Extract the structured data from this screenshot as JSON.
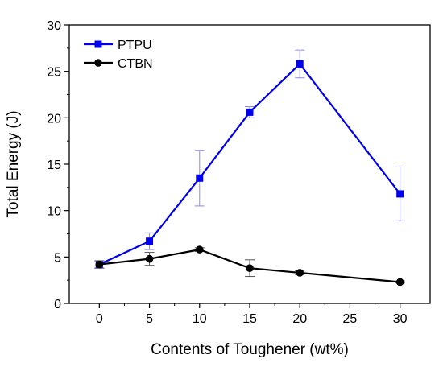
{
  "chart_data": {
    "type": "line",
    "title": "",
    "xlabel": "Contents of Toughener (wt%)",
    "ylabel": "Total Energy (J)",
    "xlim": [
      -3,
      33
    ],
    "ylim": [
      0,
      30
    ],
    "xticks": [
      0,
      5,
      10,
      15,
      20,
      25,
      30
    ],
    "yticks": [
      0,
      5,
      10,
      15,
      20,
      25,
      30
    ],
    "legend_position": "top-left",
    "grid": false,
    "x": [
      0,
      5,
      10,
      15,
      20,
      30
    ],
    "series": [
      {
        "name": "PTPU",
        "color": "#0000ee",
        "marker": "square",
        "values": [
          4.2,
          6.7,
          13.5,
          20.6,
          25.8,
          11.8
        ],
        "errors": [
          0.4,
          0.9,
          3.0,
          0.6,
          1.5,
          2.9
        ]
      },
      {
        "name": "CTBN",
        "color": "#000000",
        "marker": "circle",
        "values": [
          4.2,
          4.8,
          5.8,
          3.8,
          3.3,
          2.3
        ],
        "errors": [
          0.4,
          0.7,
          0.2,
          0.9,
          0.2,
          0.1
        ]
      }
    ]
  }
}
